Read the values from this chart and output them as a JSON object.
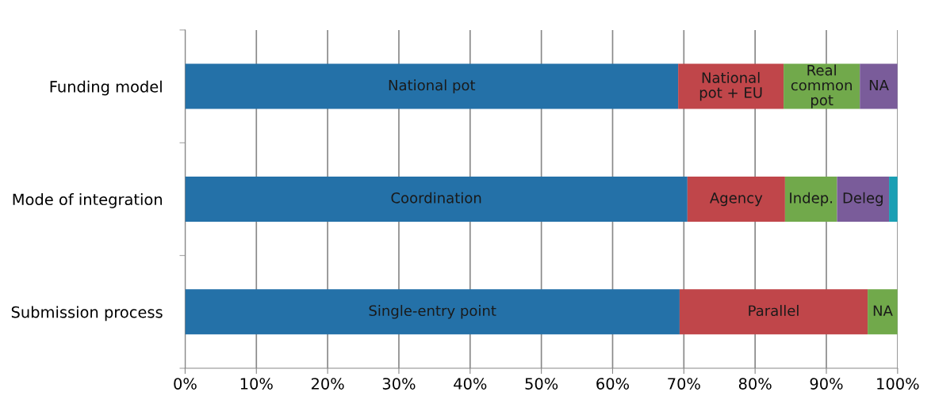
{
  "chart_data": {
    "type": "bar",
    "orientation": "horizontal",
    "stacked": true,
    "categories": [
      "Funding model",
      "Mode of integration",
      "Submission process"
    ],
    "series": [
      {
        "color": "#2471a8",
        "values": [
          69.2,
          70.5,
          69.4
        ],
        "value_labels": [
          "National pot",
          "Coordination",
          "Single-entry point"
        ]
      },
      {
        "color": "#c0464a",
        "values": [
          14.8,
          13.7,
          26.4
        ],
        "value_labels": [
          "National\npot + EU",
          "Agency",
          "Parallel"
        ]
      },
      {
        "color": "#71a94b",
        "values": [
          10.7,
          7.3,
          4.2
        ],
        "value_labels": [
          "Real\ncommon\npot",
          "Indep.",
          "NA"
        ]
      },
      {
        "color": "#7a5c9a",
        "values": [
          5.3,
          7.3,
          null
        ],
        "value_labels": [
          "NA",
          "Deleg",
          null
        ]
      },
      {
        "color": "#1a9fb4",
        "values": [
          null,
          1.2,
          null
        ],
        "value_labels": [
          null,
          null,
          null
        ]
      }
    ],
    "xlim": [
      0,
      100
    ],
    "xticks": [
      {
        "value": 0,
        "label": "0%"
      },
      {
        "value": 10,
        "label": "10%"
      },
      {
        "value": 20,
        "label": "20%"
      },
      {
        "value": 30,
        "label": "30%"
      },
      {
        "value": 40,
        "label": "40%"
      },
      {
        "value": 50,
        "label": "50%"
      },
      {
        "value": 60,
        "label": "60%"
      },
      {
        "value": 70,
        "label": "70%"
      },
      {
        "value": 80,
        "label": "80%"
      },
      {
        "value": 90,
        "label": "90%"
      },
      {
        "value": 100,
        "label": "100%"
      }
    ],
    "grid": "x",
    "legend": false
  }
}
